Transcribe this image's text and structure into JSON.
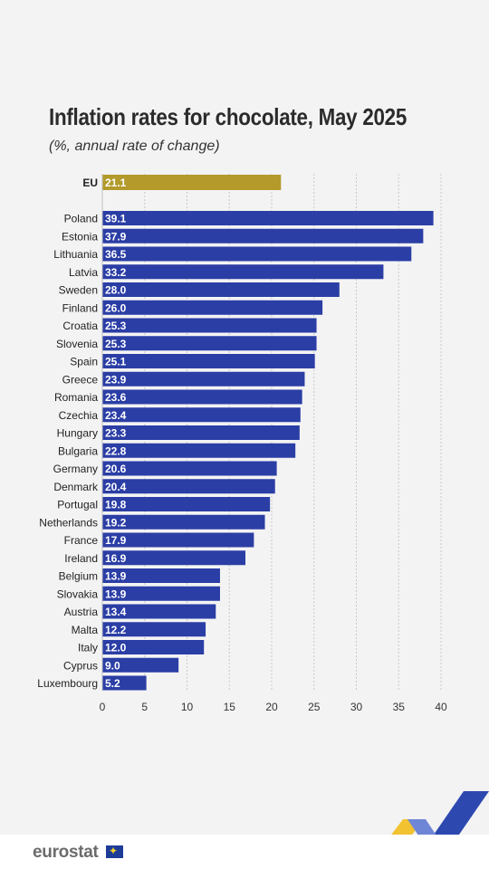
{
  "header": {
    "title": "Inflation rates for chocolate, May 2025",
    "subtitle": "(%, annual rate of change)"
  },
  "footer": {
    "logo_text": "eurostat",
    "flag_icon": "eu-flag-icon"
  },
  "colors": {
    "eu_bar": "#b39a2b",
    "country_bar": "#2b3ea5",
    "grid": "#c9c9c9"
  },
  "chart_data": {
    "type": "bar",
    "orientation": "horizontal",
    "title": "Inflation rates for chocolate, May 2025",
    "subtitle": "(%, annual rate of change)",
    "xlim": [
      0,
      40
    ],
    "xticks": [
      0,
      5,
      10,
      15,
      20,
      25,
      30,
      35,
      40
    ],
    "grid": true,
    "highlight": {
      "category": "EU",
      "value": 21.1
    },
    "categories": [
      "Poland",
      "Estonia",
      "Lithuania",
      "Latvia",
      "Sweden",
      "Finland",
      "Croatia",
      "Slovenia",
      "Spain",
      "Greece",
      "Romania",
      "Czechia",
      "Hungary",
      "Bulgaria",
      "Germany",
      "Denmark",
      "Portugal",
      "Netherlands",
      "France",
      "Ireland",
      "Belgium",
      "Slovakia",
      "Austria",
      "Malta",
      "Italy",
      "Cyprus",
      "Luxembourg"
    ],
    "values": [
      39.1,
      37.9,
      36.5,
      33.2,
      28.0,
      26.0,
      25.3,
      25.3,
      25.1,
      23.9,
      23.6,
      23.4,
      23.3,
      22.8,
      20.6,
      20.4,
      19.8,
      19.2,
      17.9,
      16.9,
      13.9,
      13.9,
      13.4,
      12.2,
      12.0,
      9.0,
      5.2
    ]
  }
}
